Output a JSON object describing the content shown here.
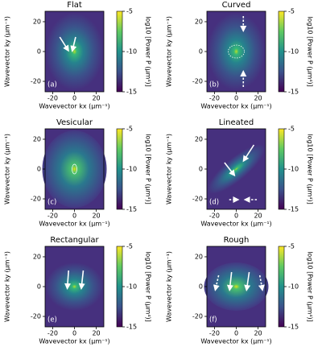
{
  "chart_data": [
    {
      "type": "heatmap",
      "title": "Flat",
      "panel_label": "(a)",
      "xlabel": "Wavevector kx (μm⁻¹)",
      "ylabel": "Wavevector ky (μm⁻¹)",
      "colorbar_label": "log10 [Power P (μm⁴)]",
      "xlim": [
        -27,
        27
      ],
      "ylim": [
        -27,
        27
      ],
      "xticks": [
        -20,
        0,
        20
      ],
      "yticks": [
        -20,
        0,
        20
      ],
      "clim": [
        -15,
        -5
      ],
      "cticks": [
        -5,
        -10,
        -15
      ]
    },
    {
      "type": "heatmap",
      "title": "Curved",
      "panel_label": "(b)",
      "xlabel": "Wavevector kx (μm⁻¹)",
      "ylabel": "Wavevector ky (μm⁻¹)",
      "colorbar_label": "log10 [Power P (μm⁴)]",
      "xlim": [
        -27,
        27
      ],
      "ylim": [
        -27,
        27
      ],
      "xticks": [
        -20,
        0,
        20
      ],
      "yticks": [
        -20,
        0,
        20
      ],
      "clim": [
        -15,
        -5
      ],
      "cticks": [
        -5,
        -10,
        -15
      ]
    },
    {
      "type": "heatmap",
      "title": "Vesicular",
      "panel_label": "(c)",
      "xlabel": "Wavevector kx (μm⁻¹)",
      "ylabel": "Wavevector ky (μm⁻¹)",
      "colorbar_label": "log10 [Power P (μm⁴)]",
      "xlim": [
        -27,
        27
      ],
      "ylim": [
        -27,
        27
      ],
      "xticks": [
        -20,
        0,
        20
      ],
      "yticks": [
        -20,
        0,
        20
      ],
      "clim": [
        -15,
        -5
      ],
      "cticks": [
        -5,
        -10,
        -15
      ]
    },
    {
      "type": "heatmap",
      "title": "Lineated",
      "panel_label": "(d)",
      "xlabel": "Wavevector kx (μm⁻¹)",
      "ylabel": "Wavevector ky (μm⁻¹)",
      "colorbar_label": "log10 [Power P (μm⁴)]",
      "xlim": [
        -27,
        27
      ],
      "ylim": [
        -27,
        27
      ],
      "xticks": [
        -20,
        0,
        20
      ],
      "yticks": [
        -20,
        0,
        20
      ],
      "clim": [
        -15,
        -5
      ],
      "cticks": [
        -5,
        -10,
        -15
      ]
    },
    {
      "type": "heatmap",
      "title": "Rectangular",
      "panel_label": "(e)",
      "xlabel": "Wavevector kx (μm⁻¹)",
      "ylabel": "Wavevector ky (μm⁻¹)",
      "colorbar_label": "log10 [Power P (μm⁴)]",
      "xlim": [
        -27,
        27
      ],
      "ylim": [
        -27,
        27
      ],
      "xticks": [
        -20,
        0,
        20
      ],
      "yticks": [
        -20,
        0,
        20
      ],
      "clim": [
        -15,
        -5
      ],
      "cticks": [
        -5,
        -10,
        -15
      ]
    },
    {
      "type": "heatmap",
      "title": "Rough",
      "panel_label": "(f)",
      "xlabel": "Wavevector kx (μm⁻¹)",
      "ylabel": "Wavevector ky (μm⁻¹)",
      "colorbar_label": "log10 [Power P (μm⁴)]",
      "xlim": [
        -27,
        27
      ],
      "ylim": [
        -27,
        27
      ],
      "xticks": [
        -20,
        0,
        20
      ],
      "yticks": [
        -20,
        0,
        20
      ],
      "clim": [
        -15,
        -5
      ],
      "cticks": [
        -5,
        -10,
        -15
      ]
    }
  ]
}
